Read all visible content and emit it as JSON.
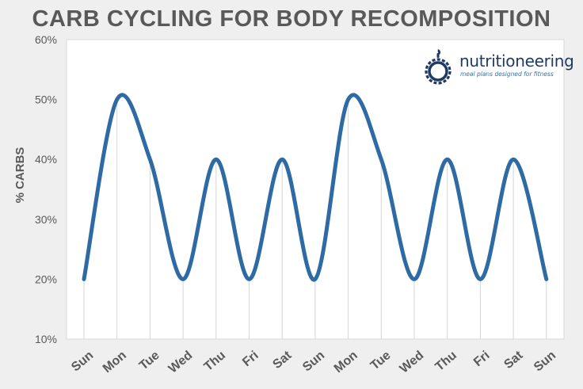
{
  "chart_data": {
    "type": "line",
    "title": "CARB CYCLING FOR BODY RECOMPOSITION",
    "ylabel": "% CARBS",
    "xlabel": "",
    "categories": [
      "Sun",
      "Mon",
      "Tue",
      "Wed",
      "Thu",
      "Fri",
      "Sat",
      "Sun",
      "Mon",
      "Tue",
      "Wed",
      "Thu",
      "Fri",
      "Sat",
      "Sun"
    ],
    "series": [
      {
        "values": [
          20,
          50,
          40,
          20,
          40,
          20,
          40,
          20,
          50,
          40,
          20,
          40,
          20,
          40,
          20
        ]
      }
    ],
    "ylim": [
      10,
      60
    ],
    "yticks": [
      10,
      20,
      30,
      40,
      50,
      60
    ],
    "ytick_labels": [
      "10%",
      "20%",
      "30%",
      "40%",
      "50%",
      "60%"
    ],
    "vertical_drop_lines": true,
    "line_color": "#2e6aa3",
    "grid_color": "#d6d6d6"
  },
  "logo": {
    "name": "nutritioneering",
    "tagline": "meal plans designed for fitness",
    "name_color": "#1f3b63",
    "mark_color": "#1f3b63"
  }
}
